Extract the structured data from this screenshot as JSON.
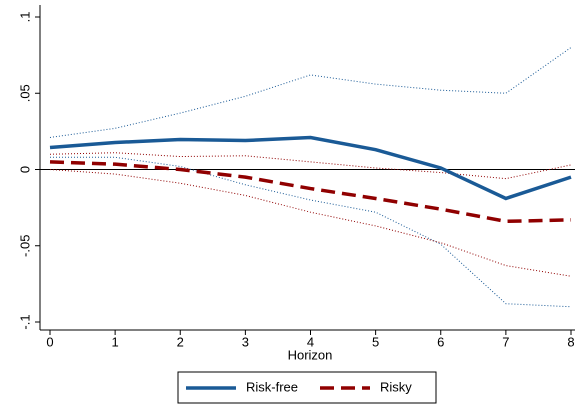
{
  "chart_data": {
    "type": "line",
    "x_label": "Horizon",
    "x": [
      0,
      1,
      2,
      3,
      4,
      5,
      6,
      7,
      8
    ],
    "xlim": [
      0,
      8
    ],
    "xticks": [
      0,
      1,
      2,
      3,
      4,
      5,
      6,
      7,
      8
    ],
    "ylim": [
      -0.1,
      0.1
    ],
    "yticks": [
      {
        "value": -0.1,
        "label": "-.1"
      },
      {
        "value": -0.05,
        "label": "-.05"
      },
      0,
      {
        "value": 0.05,
        "label": ".05"
      },
      {
        "value": 0.1,
        "label": ".1"
      }
    ],
    "reference_line": 0,
    "legend": "bottom",
    "series": [
      {
        "name": "Risk-free",
        "color": "#1a5a96",
        "dash": "solid",
        "values": [
          0.0144,
          0.0177,
          0.0197,
          0.019,
          0.021,
          0.013,
          0.001,
          -0.019,
          -0.005
        ],
        "upper": [
          0.021,
          0.027,
          0.037,
          0.048,
          0.062,
          0.056,
          0.052,
          0.05,
          0.08
        ],
        "lower": [
          0.008,
          0.008,
          0.002,
          -0.01,
          -0.02,
          -0.028,
          -0.049,
          -0.088,
          -0.09
        ]
      },
      {
        "name": "Risky",
        "color": "#900000",
        "dash": "dashed",
        "values": [
          0.005,
          0.0035,
          0,
          -0.005,
          -0.0125,
          -0.019,
          -0.026,
          -0.034,
          -0.033
        ],
        "upper": [
          0.01,
          0.011,
          0.0085,
          0.009,
          0.005,
          0.001,
          -0.002,
          -0.006,
          0.003
        ],
        "lower": [
          0,
          -0.003,
          -0.009,
          -0.017,
          -0.028,
          -0.037,
          -0.048,
          -0.063,
          -0.07
        ]
      }
    ]
  }
}
